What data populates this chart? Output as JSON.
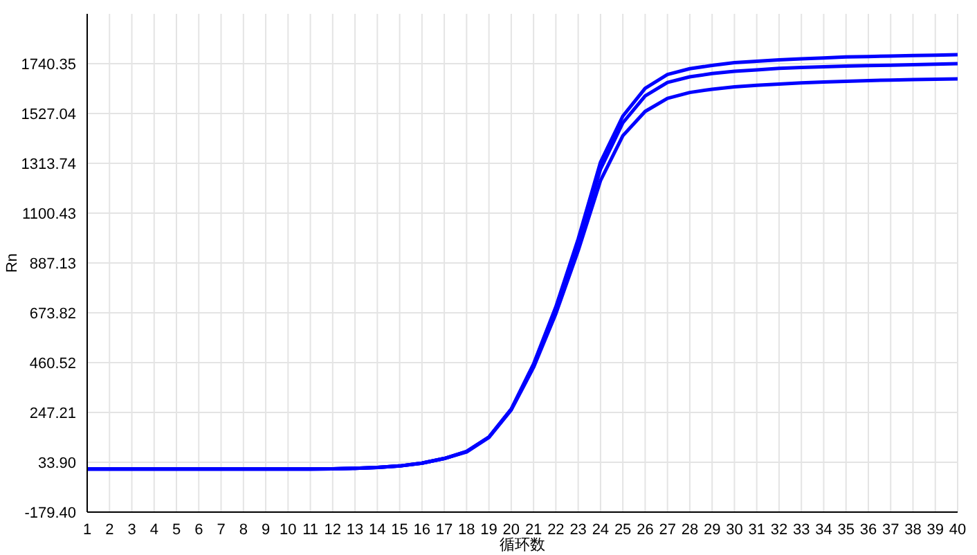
{
  "chart_data": {
    "type": "line",
    "xlabel": "循环数",
    "ylabel": "Rn",
    "x": [
      1,
      2,
      3,
      4,
      5,
      6,
      7,
      8,
      9,
      10,
      11,
      12,
      13,
      14,
      15,
      16,
      17,
      18,
      19,
      20,
      21,
      22,
      23,
      24,
      25,
      26,
      27,
      28,
      29,
      30,
      31,
      32,
      33,
      34,
      35,
      36,
      37,
      38,
      39,
      40
    ],
    "series": [
      {
        "color": "#0000ff",
        "values": [
          5,
          5,
          5,
          5,
          5,
          5,
          5,
          5,
          5,
          5,
          5,
          6,
          8,
          12,
          18,
          30,
          50,
          80,
          142,
          262,
          455,
          700,
          990,
          1319,
          1516,
          1635,
          1694,
          1719,
          1733,
          1745,
          1751,
          1757,
          1761,
          1765,
          1769,
          1771,
          1773,
          1775,
          1777,
          1779
        ]
      },
      {
        "color": "#0000ff",
        "values": [
          5,
          5,
          5,
          5,
          5,
          5,
          5,
          5,
          5,
          5,
          5,
          6,
          8,
          12,
          18,
          30,
          50,
          80,
          142,
          261,
          449,
          686,
          970,
          1289,
          1487,
          1602,
          1660,
          1684,
          1698,
          1708,
          1714,
          1720,
          1724,
          1727,
          1730,
          1732,
          1734,
          1736,
          1738,
          1740
        ]
      },
      {
        "color": "#0000ff",
        "values": [
          5,
          5,
          5,
          5,
          5,
          5,
          5,
          5,
          5,
          5,
          5,
          6,
          8,
          12,
          18,
          30,
          50,
          78,
          140,
          258,
          440,
          670,
          940,
          1240,
          1432,
          1536,
          1592,
          1617,
          1631,
          1641,
          1648,
          1653,
          1658,
          1662,
          1665,
          1668,
          1670,
          1672,
          1674,
          1675
        ]
      }
    ],
    "xlim": [
      1,
      40
    ],
    "xticks": [
      1,
      2,
      3,
      4,
      5,
      6,
      7,
      8,
      9,
      10,
      11,
      12,
      13,
      14,
      15,
      16,
      17,
      18,
      19,
      20,
      21,
      22,
      23,
      24,
      25,
      26,
      27,
      28,
      29,
      30,
      31,
      32,
      33,
      34,
      35,
      36,
      37,
      38,
      39,
      40
    ],
    "ylim": [
      -179.4,
      1953.66
    ],
    "yticks": [
      {
        "value": -179.4,
        "label": "-179.40"
      },
      {
        "value": 33.9,
        "label": "33.90"
      },
      247.21,
      460.52,
      673.82,
      {
        "value": 887.13,
        "label": "887.13"
      },
      1100.43,
      1313.74,
      1527.04,
      1740.35
    ],
    "grid": true,
    "legend": false,
    "marker": "none",
    "line_style": "solid"
  }
}
